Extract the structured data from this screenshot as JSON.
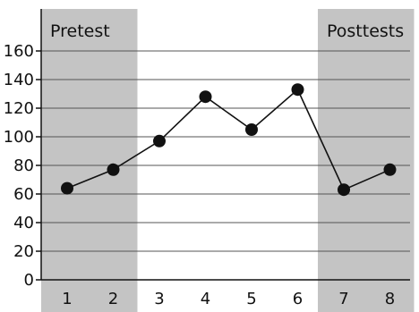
{
  "chart_data": {
    "type": "line",
    "title": "",
    "xlabel": "",
    "ylabel": "",
    "x": [
      1,
      2,
      3,
      4,
      5,
      6,
      7,
      8
    ],
    "values": [
      64,
      77,
      97,
      128,
      105,
      133,
      63,
      77
    ],
    "xlim": [
      0.5,
      8.5
    ],
    "ylim": [
      0,
      160
    ],
    "yticks": [
      0,
      20,
      40,
      60,
      80,
      100,
      120,
      140,
      160
    ],
    "xtick_labels": [
      "1",
      "2",
      "3",
      "4",
      "5",
      "6",
      "7",
      "8"
    ],
    "grid": "horizontal",
    "regions": [
      {
        "label": "Pretest",
        "x_start": 1,
        "x_end": 2,
        "color": "#c4c4c4"
      },
      {
        "label": "Posttests",
        "x_start": 7,
        "x_end": 8,
        "color": "#c4c4c4"
      }
    ],
    "colors": {
      "line": "#111111",
      "marker": "#111111",
      "grid": "#555555",
      "axis": "#111111",
      "shade": "#c4c4c4"
    }
  }
}
